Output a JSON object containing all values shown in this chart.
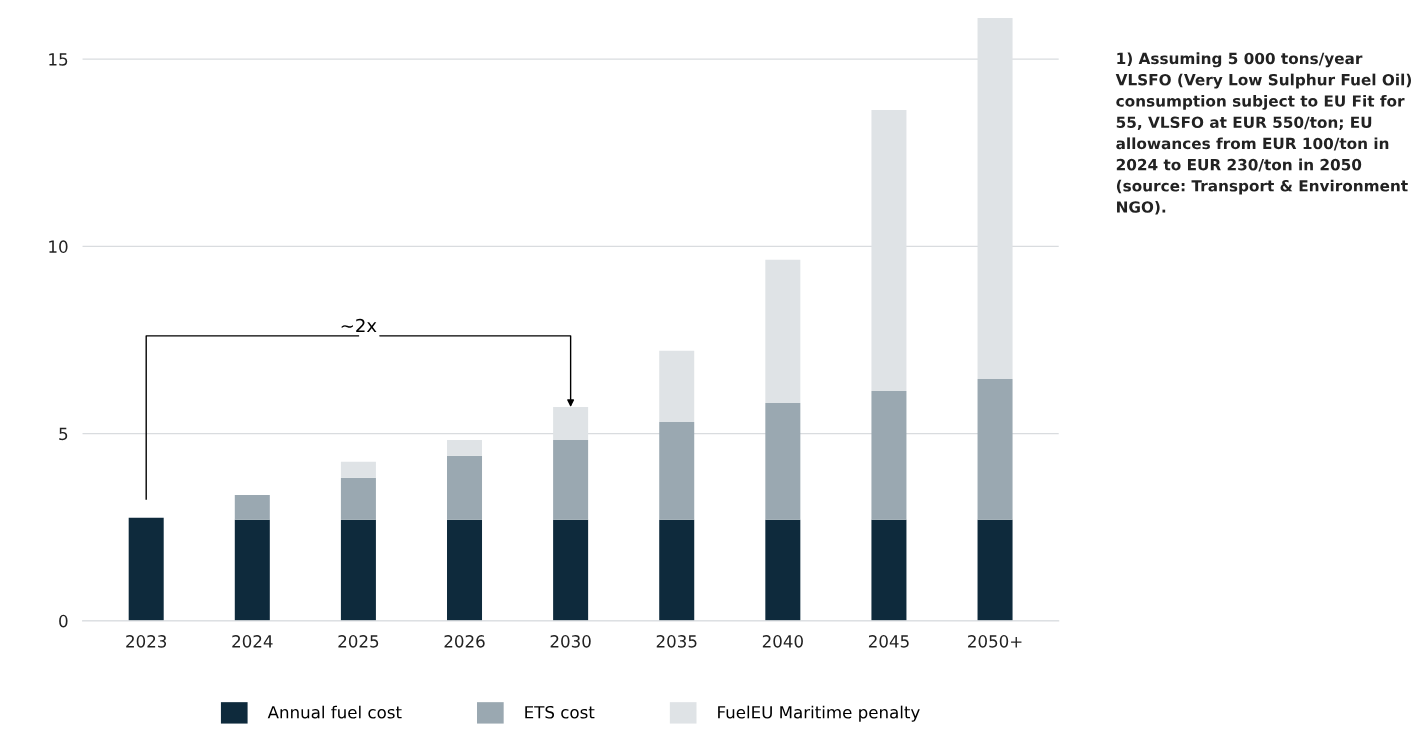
{
  "chart_data": {
    "type": "bar",
    "stacked": true,
    "categories": [
      "2023",
      "2024",
      "2025",
      "2026",
      "2030",
      "2035",
      "2040",
      "2045",
      "2050+"
    ],
    "series": [
      {
        "name": "Annual fuel cost",
        "color": "#0e2a3c",
        "values": [
          2.75,
          2.7,
          2.7,
          2.7,
          2.7,
          2.7,
          2.7,
          2.7,
          2.7
        ]
      },
      {
        "name": "ETS cost",
        "color": "#9aa8b1",
        "values": [
          null,
          0.66,
          1.12,
          1.71,
          2.13,
          2.61,
          3.12,
          3.44,
          3.76
        ]
      },
      {
        "name": "FuelEU Maritime penalty",
        "color": "#dfe3e6",
        "values": [
          null,
          null,
          0.43,
          0.42,
          0.88,
          1.9,
          3.82,
          7.5,
          9.64
        ]
      }
    ],
    "ylim": [
      0,
      16.1
    ],
    "yticks": [
      0,
      5,
      10,
      15
    ],
    "grid": "y",
    "legend": "bottom",
    "annotations": [
      {
        "text": "~2x",
        "x": "2030",
        "y": 5.71
      },
      "1) Assuming 5 000 tons/year VLSFO (Very Low Sulphur Fuel Oil) consumption subject to EU Fit for 55, VLSFO at EUR 550/ton; EU allowances from EUR 100/ton in 2024 to EUR 230/ton in 2050 (source: Transport & Environment NGO)."
    ]
  }
}
